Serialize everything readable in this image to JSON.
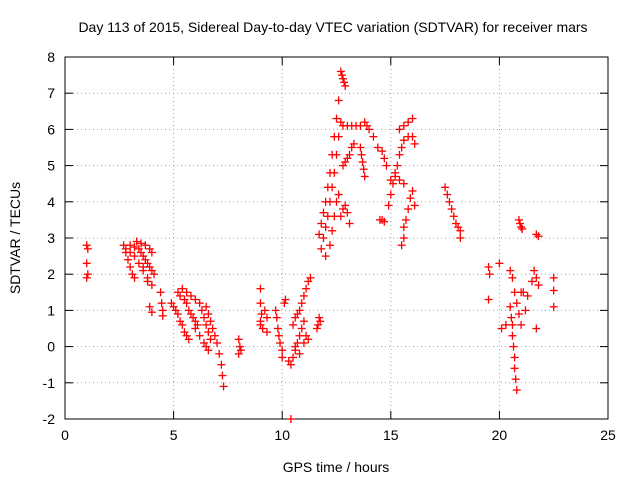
{
  "chart_data": {
    "type": "scatter",
    "title": "Day 113 of 2015, Sidereal Day-to-day VTEC variation (SDTVAR) for receiver mars",
    "xlabel": "GPS time / hours",
    "ylabel": "SDTVAR / TECUs",
    "xlim": [
      0,
      25
    ],
    "ylim": [
      -2,
      8
    ],
    "xticks": [
      "0",
      "5",
      "10",
      "15",
      "20",
      "25"
    ],
    "yticks": [
      "-2",
      "-1",
      "0",
      "1",
      "2",
      "3",
      "4",
      "5",
      "6",
      "7",
      "8"
    ],
    "grid": true,
    "marker": "+",
    "colors": {
      "points": "#ff0000",
      "grid": "#a0a0a0",
      "axis": "#000000"
    },
    "series": [
      {
        "name": "SDTVAR",
        "points": [
          [
            1.0,
            2.8
          ],
          [
            1.05,
            2.7
          ],
          [
            1.0,
            2.3
          ],
          [
            1.05,
            2.0
          ],
          [
            1.0,
            1.9
          ],
          [
            2.7,
            2.8
          ],
          [
            2.8,
            2.6
          ],
          [
            2.9,
            2.4
          ],
          [
            3.0,
            2.2
          ],
          [
            3.1,
            2.0
          ],
          [
            3.2,
            1.9
          ],
          [
            2.8,
            2.7
          ],
          [
            3.0,
            2.6
          ],
          [
            3.2,
            2.5
          ],
          [
            3.4,
            2.3
          ],
          [
            3.6,
            2.1
          ],
          [
            3.8,
            1.9
          ],
          [
            3.0,
            2.8
          ],
          [
            3.2,
            2.75
          ],
          [
            3.4,
            2.7
          ],
          [
            3.5,
            2.6
          ],
          [
            3.6,
            2.5
          ],
          [
            3.7,
            2.4
          ],
          [
            3.8,
            2.3
          ],
          [
            3.9,
            2.2
          ],
          [
            4.0,
            2.1
          ],
          [
            4.1,
            2.0
          ],
          [
            3.3,
            2.9
          ],
          [
            3.5,
            2.85
          ],
          [
            3.7,
            2.8
          ],
          [
            3.9,
            2.7
          ],
          [
            4.0,
            2.6
          ],
          [
            3.6,
            2.2
          ],
          [
            3.8,
            1.8
          ],
          [
            4.0,
            1.7
          ],
          [
            3.9,
            1.1
          ],
          [
            4.0,
            0.95
          ],
          [
            4.4,
            1.5
          ],
          [
            4.45,
            1.2
          ],
          [
            4.5,
            1.0
          ],
          [
            4.5,
            0.85
          ],
          [
            4.9,
            1.2
          ],
          [
            5.0,
            1.1
          ],
          [
            5.1,
            1.0
          ],
          [
            5.2,
            0.9
          ],
          [
            5.3,
            0.7
          ],
          [
            5.4,
            0.6
          ],
          [
            5.5,
            0.4
          ],
          [
            5.6,
            0.3
          ],
          [
            5.7,
            0.2
          ],
          [
            5.2,
            1.5
          ],
          [
            5.3,
            1.4
          ],
          [
            5.5,
            1.3
          ],
          [
            5.6,
            1.2
          ],
          [
            5.7,
            1.0
          ],
          [
            5.8,
            0.9
          ],
          [
            5.9,
            0.8
          ],
          [
            6.0,
            0.7
          ],
          [
            6.1,
            0.6
          ],
          [
            5.4,
            1.6
          ],
          [
            5.6,
            1.5
          ],
          [
            5.8,
            1.4
          ],
          [
            6.0,
            1.3
          ],
          [
            6.2,
            1.2
          ],
          [
            6.3,
            1.0
          ],
          [
            6.4,
            0.8
          ],
          [
            6.5,
            0.6
          ],
          [
            6.6,
            0.4
          ],
          [
            6.7,
            0.2
          ],
          [
            6.0,
            0.5
          ],
          [
            6.2,
            0.3
          ],
          [
            6.4,
            0.1
          ],
          [
            6.5,
            0.0
          ],
          [
            6.6,
            -0.1
          ],
          [
            6.5,
            1.1
          ],
          [
            6.6,
            0.9
          ],
          [
            6.7,
            0.7
          ],
          [
            6.8,
            0.5
          ],
          [
            6.9,
            0.3
          ],
          [
            7.0,
            0.1
          ],
          [
            7.1,
            -0.2
          ],
          [
            7.2,
            -0.5
          ],
          [
            7.25,
            -0.8
          ],
          [
            7.3,
            -1.1
          ],
          [
            8.0,
            0.2
          ],
          [
            8.05,
            0.0
          ],
          [
            8.1,
            -0.1
          ],
          [
            8.0,
            -0.2
          ],
          [
            9.0,
            1.6
          ],
          [
            9.0,
            1.2
          ],
          [
            9.05,
            0.9
          ],
          [
            9.0,
            0.7
          ],
          [
            9.1,
            0.5
          ],
          [
            9.0,
            0.6
          ],
          [
            9.2,
            1.0
          ],
          [
            9.3,
            0.8
          ],
          [
            9.3,
            0.4
          ],
          [
            9.7,
            1.0
          ],
          [
            9.75,
            0.8
          ],
          [
            9.8,
            0.5
          ],
          [
            9.85,
            0.3
          ],
          [
            9.9,
            0.1
          ],
          [
            10.0,
            -0.1
          ],
          [
            10.0,
            -0.3
          ],
          [
            10.1,
            1.2
          ],
          [
            10.15,
            1.3
          ],
          [
            10.3,
            -0.4
          ],
          [
            10.4,
            -0.5
          ],
          [
            10.5,
            -0.3
          ],
          [
            10.6,
            -0.1
          ],
          [
            10.7,
            0.1
          ],
          [
            10.8,
            0.3
          ],
          [
            10.9,
            0.5
          ],
          [
            11.0,
            0.7
          ],
          [
            10.5,
            0.6
          ],
          [
            10.6,
            0.8
          ],
          [
            10.7,
            0.9
          ],
          [
            10.8,
            1.0
          ],
          [
            10.9,
            1.2
          ],
          [
            11.0,
            1.4
          ],
          [
            11.1,
            1.6
          ],
          [
            11.2,
            1.8
          ],
          [
            11.3,
            1.9
          ],
          [
            10.6,
            0.0
          ],
          [
            10.8,
            -0.2
          ],
          [
            11.0,
            0.1
          ],
          [
            11.1,
            0.3
          ],
          [
            11.2,
            0.2
          ],
          [
            10.4,
            -2.0
          ],
          [
            11.6,
            0.5
          ],
          [
            11.65,
            0.6
          ],
          [
            11.7,
            0.8
          ],
          [
            11.75,
            0.7
          ],
          [
            11.7,
            3.1
          ],
          [
            11.8,
            3.4
          ],
          [
            11.9,
            3.7
          ],
          [
            12.0,
            4.0
          ],
          [
            12.1,
            4.4
          ],
          [
            12.2,
            4.8
          ],
          [
            12.3,
            5.3
          ],
          [
            12.4,
            5.8
          ],
          [
            12.5,
            6.3
          ],
          [
            12.6,
            6.8
          ],
          [
            11.8,
            2.7
          ],
          [
            11.9,
            3.0
          ],
          [
            12.0,
            3.3
          ],
          [
            12.1,
            3.6
          ],
          [
            12.2,
            4.0
          ],
          [
            12.3,
            4.4
          ],
          [
            12.4,
            4.8
          ],
          [
            12.5,
            5.3
          ],
          [
            12.6,
            5.8
          ],
          [
            12.7,
            6.2
          ],
          [
            12.0,
            2.5
          ],
          [
            12.2,
            2.8
          ],
          [
            12.3,
            3.2
          ],
          [
            12.4,
            3.6
          ],
          [
            12.5,
            4.0
          ],
          [
            12.6,
            4.2
          ],
          [
            12.7,
            7.6
          ],
          [
            12.75,
            7.5
          ],
          [
            12.8,
            7.4
          ],
          [
            12.85,
            7.3
          ],
          [
            12.9,
            7.2
          ],
          [
            12.8,
            6.1
          ],
          [
            13.0,
            6.1
          ],
          [
            13.2,
            6.1
          ],
          [
            13.4,
            6.1
          ],
          [
            13.6,
            6.1
          ],
          [
            12.8,
            5.0
          ],
          [
            12.9,
            5.1
          ],
          [
            13.0,
            5.2
          ],
          [
            13.1,
            5.3
          ],
          [
            13.2,
            5.5
          ],
          [
            13.3,
            5.6
          ],
          [
            12.7,
            3.6
          ],
          [
            12.8,
            3.8
          ],
          [
            12.9,
            3.9
          ],
          [
            13.0,
            3.7
          ],
          [
            13.1,
            3.4
          ],
          [
            13.6,
            5.5
          ],
          [
            13.65,
            5.3
          ],
          [
            13.7,
            5.1
          ],
          [
            13.75,
            4.9
          ],
          [
            13.8,
            4.7
          ],
          [
            13.8,
            6.2
          ],
          [
            13.9,
            6.1
          ],
          [
            14.0,
            6.0
          ],
          [
            14.2,
            5.8
          ],
          [
            14.4,
            5.5
          ],
          [
            14.7,
            5.2
          ],
          [
            14.8,
            5.0
          ],
          [
            14.6,
            5.4
          ],
          [
            14.5,
            3.5
          ],
          [
            14.6,
            3.5
          ],
          [
            14.7,
            3.45
          ],
          [
            14.9,
            3.9
          ],
          [
            15.0,
            4.2
          ],
          [
            15.1,
            4.5
          ],
          [
            15.2,
            4.8
          ],
          [
            15.3,
            5.0
          ],
          [
            15.4,
            5.3
          ],
          [
            15.5,
            5.5
          ],
          [
            15.6,
            5.7
          ],
          [
            15.8,
            5.8
          ],
          [
            15.0,
            4.6
          ],
          [
            15.2,
            4.7
          ],
          [
            15.4,
            4.6
          ],
          [
            15.6,
            4.5
          ],
          [
            15.4,
            6.0
          ],
          [
            15.6,
            6.1
          ],
          [
            15.8,
            6.2
          ],
          [
            16.0,
            6.3
          ],
          [
            16.0,
            5.8
          ],
          [
            16.1,
            5.6
          ],
          [
            15.6,
            3.3
          ],
          [
            15.7,
            3.5
          ],
          [
            15.8,
            3.8
          ],
          [
            15.9,
            4.1
          ],
          [
            16.0,
            4.3
          ],
          [
            16.1,
            3.9
          ],
          [
            15.5,
            2.8
          ],
          [
            15.6,
            3.0
          ],
          [
            17.5,
            4.4
          ],
          [
            17.6,
            4.2
          ],
          [
            17.7,
            4.0
          ],
          [
            17.8,
            3.8
          ],
          [
            17.9,
            3.6
          ],
          [
            18.0,
            3.4
          ],
          [
            18.1,
            3.3
          ],
          [
            18.2,
            3.2
          ],
          [
            18.2,
            3.0
          ],
          [
            19.5,
            2.2
          ],
          [
            19.55,
            2.0
          ],
          [
            19.5,
            1.3
          ],
          [
            20.0,
            2.3
          ],
          [
            20.1,
            0.5
          ],
          [
            20.3,
            0.6
          ],
          [
            20.5,
            1.1
          ],
          [
            20.55,
            0.8
          ],
          [
            20.6,
            0.6
          ],
          [
            20.6,
            0.3
          ],
          [
            20.65,
            0.0
          ],
          [
            20.7,
            -0.3
          ],
          [
            20.7,
            -0.6
          ],
          [
            20.75,
            -0.9
          ],
          [
            20.8,
            -1.2
          ],
          [
            20.5,
            2.1
          ],
          [
            20.6,
            1.9
          ],
          [
            20.7,
            1.5
          ],
          [
            20.8,
            1.2
          ],
          [
            20.9,
            0.9
          ],
          [
            21.0,
            0.6
          ],
          [
            21.0,
            1.5
          ],
          [
            21.1,
            1.5
          ],
          [
            20.9,
            3.5
          ],
          [
            20.95,
            3.4
          ],
          [
            21.0,
            3.3
          ],
          [
            21.05,
            3.25
          ],
          [
            21.2,
            1.0
          ],
          [
            21.3,
            1.4
          ],
          [
            21.5,
            1.8
          ],
          [
            21.6,
            2.1
          ],
          [
            21.7,
            1.9
          ],
          [
            21.8,
            1.7
          ],
          [
            21.7,
            3.1
          ],
          [
            21.8,
            3.05
          ],
          [
            21.7,
            0.5
          ],
          [
            22.5,
            1.9
          ],
          [
            22.5,
            1.55
          ],
          [
            22.5,
            1.1
          ]
        ]
      }
    ]
  }
}
